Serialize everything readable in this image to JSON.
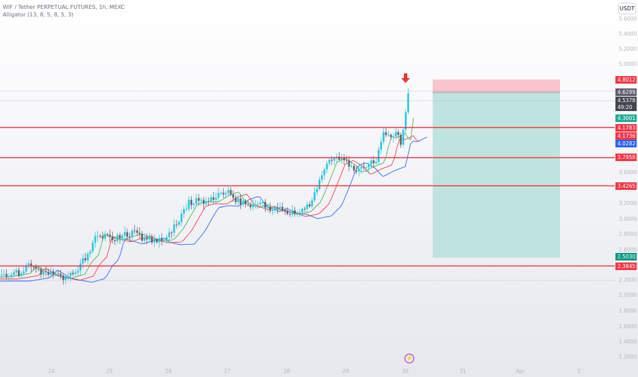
{
  "header": {
    "title": "WIF / Tether PERPETUAL FUTURES, 1h, MEXC",
    "indicator": "Alligator (13, 8, 5, 8, 5, 3)"
  },
  "currency_button": "USDT",
  "price_axis_ticks": [
    "5.6000",
    "5.4000",
    "5.2000",
    "5.0000",
    "3.6000",
    "3.2000",
    "3.0000",
    "2.8000",
    "2.6000",
    "2.2000",
    "2.0000",
    "1.8000",
    "1.6000",
    "1.4000",
    "1.2000"
  ],
  "price_labels": [
    {
      "text": "4.8012",
      "color": "#f23645"
    },
    {
      "text": "4.6299",
      "color": "#5d606b"
    },
    {
      "text": "4.5378",
      "color": "#434651"
    },
    {
      "text": "49:20",
      "color": "#434651"
    },
    {
      "text": "4.3001",
      "color": "#22ab94"
    },
    {
      "text": "4.1783",
      "color": "#f23645"
    },
    {
      "text": "4.1736",
      "color": "#f23645"
    },
    {
      "text": "4.0282",
      "color": "#2962ff"
    },
    {
      "text": "3.7958",
      "color": "#f23645"
    },
    {
      "text": "3.4265",
      "color": "#f23645"
    },
    {
      "text": "2.5030",
      "color": "#089981"
    },
    {
      "text": "2.3845",
      "color": "#f23645"
    }
  ],
  "time_axis": [
    "24",
    "25",
    "26",
    "27",
    "28",
    "29",
    "30",
    "31",
    "Apr",
    "2"
  ],
  "colors": {
    "up": "#26c6da",
    "down": "#5d606b",
    "level_line": "#f23645",
    "jaw": "#2962ff",
    "teeth": "#f23645",
    "lips": "#4caf50",
    "stop_zone": "#f7c5cb",
    "target_zone": "#bfe4df"
  },
  "icons": {
    "bolt": "lightning-icon",
    "arrow": "down-arrow-icon"
  }
}
